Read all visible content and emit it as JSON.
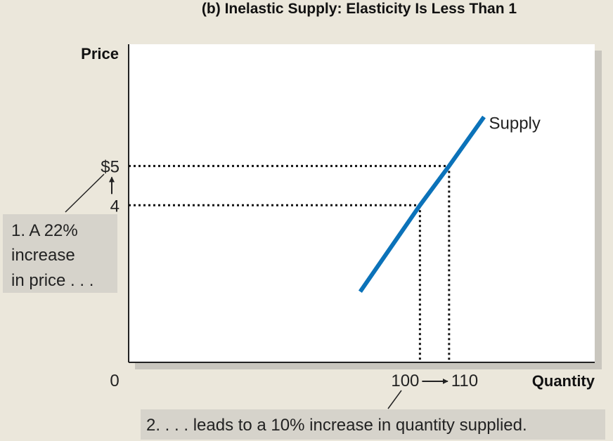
{
  "chart_data": {
    "type": "line",
    "title": "(b) Inelastic Supply: Elasticity Is Less Than 1",
    "xlabel": "Quantity",
    "ylabel": "Price",
    "origin_label": "0",
    "x_ticks": [
      "100",
      "110"
    ],
    "x_tick_arrow": "→",
    "y_ticks": [
      "$5",
      "4"
    ],
    "y_tick_arrow": "↑",
    "xlim": [
      0,
      160
    ],
    "ylim": [
      0,
      8.1
    ],
    "grid": false,
    "series": [
      {
        "name": "Supply",
        "points": [
          [
            79.5,
            1.8
          ],
          [
            100,
            4
          ],
          [
            110,
            5
          ],
          [
            122,
            6.25
          ]
        ]
      }
    ],
    "guides": [
      {
        "x": 100,
        "y": 4
      },
      {
        "x": 110,
        "y": 5
      }
    ],
    "colors": {
      "series": "#0b72b9",
      "note_box": "#d6d3cb",
      "background": "#ebe7db",
      "plot": "#ffffff"
    },
    "annotations": {
      "price_note": [
        "1. A 22%",
        "increase",
        "in price . . ."
      ],
      "quantity_note": "2. . . . leads to a 10% increase in quantity supplied."
    }
  }
}
